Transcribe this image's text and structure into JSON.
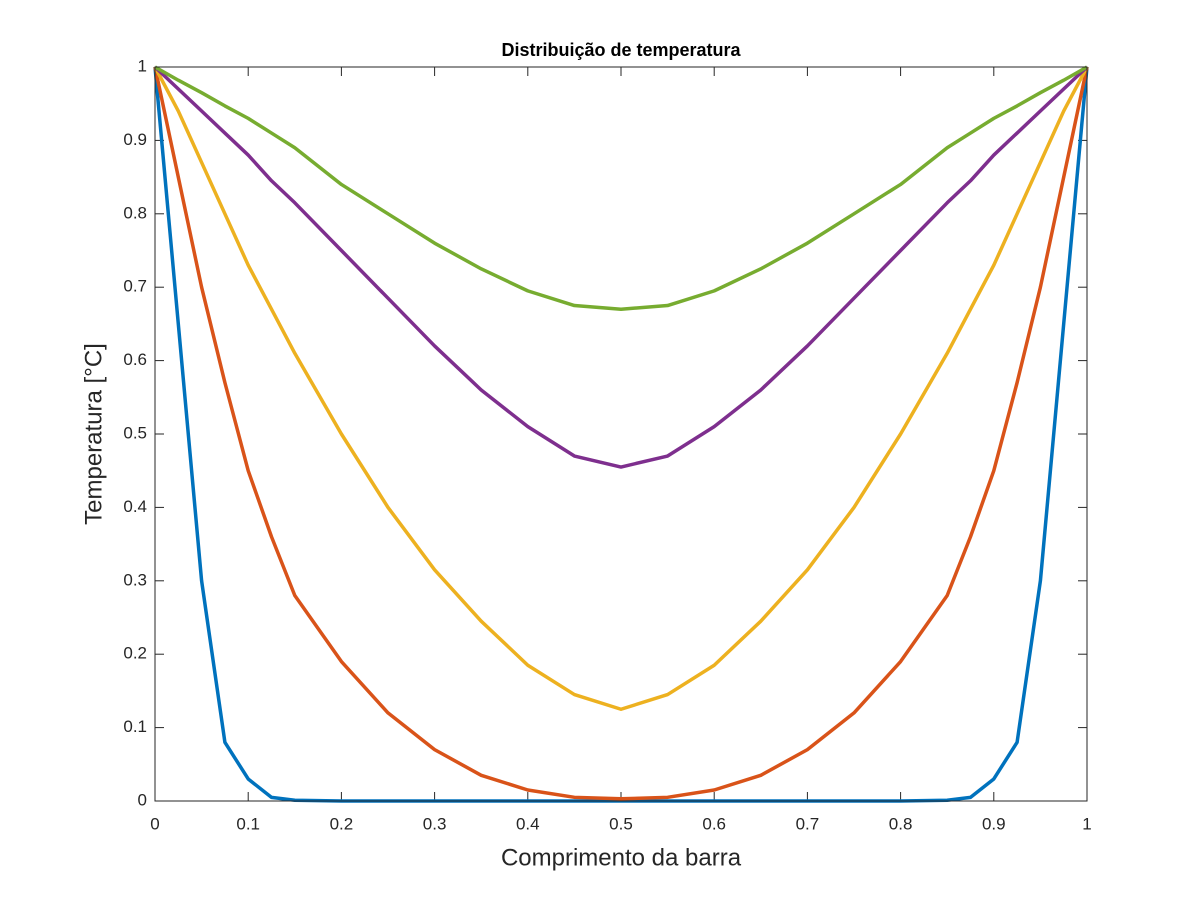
{
  "chart_data": {
    "type": "line",
    "title": "Distribuição de temperatura",
    "xlabel": "Comprimento da barra",
    "ylabel": "Temperatura [°C]",
    "x": [
      0,
      0.025,
      0.05,
      0.075,
      0.1,
      0.125,
      0.15,
      0.2,
      0.25,
      0.3,
      0.35,
      0.4,
      0.45,
      0.5,
      0.55,
      0.6,
      0.65,
      0.7,
      0.75,
      0.8,
      0.85,
      0.875,
      0.9,
      0.925,
      0.95,
      0.975,
      1
    ],
    "series": [
      {
        "color": "#0072BD",
        "values": [
          1,
          0.65,
          0.3,
          0.08,
          0.03,
          0.005,
          0.001,
          0,
          0,
          0,
          0,
          0,
          0,
          0,
          0,
          0,
          0,
          0,
          0,
          0,
          0.001,
          0.005,
          0.03,
          0.08,
          0.3,
          0.65,
          1
        ]
      },
      {
        "color": "#D95319",
        "values": [
          1,
          0.85,
          0.7,
          0.57,
          0.45,
          0.36,
          0.28,
          0.19,
          0.12,
          0.07,
          0.035,
          0.015,
          0.005,
          0.003,
          0.005,
          0.015,
          0.035,
          0.07,
          0.12,
          0.19,
          0.28,
          0.36,
          0.45,
          0.57,
          0.7,
          0.85,
          1
        ]
      },
      {
        "color": "#EDB120",
        "values": [
          1,
          0.94,
          0.87,
          0.8,
          0.73,
          0.67,
          0.61,
          0.5,
          0.4,
          0.315,
          0.245,
          0.185,
          0.145,
          0.125,
          0.145,
          0.185,
          0.245,
          0.315,
          0.4,
          0.5,
          0.61,
          0.67,
          0.73,
          0.8,
          0.87,
          0.94,
          1
        ]
      },
      {
        "color": "#7E2F8E",
        "values": [
          1,
          0.97,
          0.94,
          0.91,
          0.88,
          0.845,
          0.815,
          0.75,
          0.685,
          0.62,
          0.56,
          0.51,
          0.47,
          0.455,
          0.47,
          0.51,
          0.56,
          0.62,
          0.685,
          0.75,
          0.815,
          0.845,
          0.88,
          0.91,
          0.94,
          0.97,
          1
        ]
      },
      {
        "color": "#77AC30",
        "values": [
          1,
          0.982,
          0.965,
          0.947,
          0.93,
          0.91,
          0.89,
          0.84,
          0.8,
          0.76,
          0.725,
          0.695,
          0.675,
          0.67,
          0.675,
          0.695,
          0.725,
          0.76,
          0.8,
          0.84,
          0.89,
          0.91,
          0.93,
          0.947,
          0.965,
          0.982,
          1
        ]
      }
    ],
    "xlim": [
      0,
      1
    ],
    "xticks": [
      0,
      0.1,
      0.2,
      0.3,
      0.4,
      0.5,
      0.6,
      0.7,
      0.8,
      0.9,
      1
    ],
    "ylim": [
      0,
      1
    ],
    "yticks": [
      0,
      0.1,
      0.2,
      0.3,
      0.4,
      0.5,
      0.6,
      0.7,
      0.8,
      0.9,
      1
    ],
    "grid": false
  }
}
